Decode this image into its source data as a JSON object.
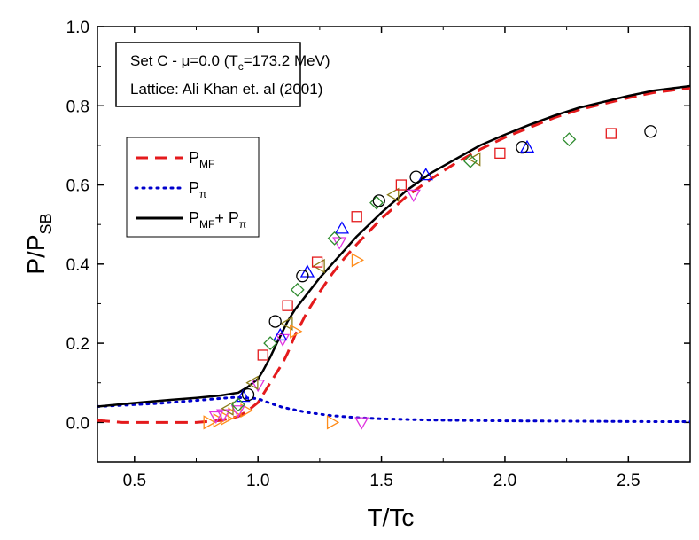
{
  "chart_data": {
    "type": "line",
    "xlabel": "T/Tc",
    "ylabel_main": "P/P",
    "ylabel_sub": "SB",
    "xlim": [
      0.35,
      2.75
    ],
    "ylim": [
      -0.1,
      1.0
    ],
    "x_ticks": [
      0.5,
      1.0,
      1.5,
      2.0,
      2.5
    ],
    "x_tick_labels": [
      "0.5",
      "1.0",
      "1.5",
      "2.0",
      "2.5"
    ],
    "y_ticks": [
      0.0,
      0.2,
      0.4,
      0.6,
      0.8,
      1.0
    ],
    "y_tick_labels": [
      "0.0",
      "0.2",
      "0.4",
      "0.6",
      "0.8",
      "1.0"
    ],
    "annotation": {
      "line1_pre": "Set C - ",
      "line1_mu": "μ=0.0 (T",
      "line1_sub": "c",
      "line1_post": "=173.2 MeV)",
      "line2": "Lattice: Ali Khan et. al (2001)"
    },
    "legend": {
      "placement": "upper-left",
      "entries": [
        {
          "main": "P",
          "sub": "MF",
          "tail_main": "",
          "tail_sub": ""
        },
        {
          "main": "P",
          "sub": "π",
          "tail_main": "",
          "tail_sub": ""
        },
        {
          "main": "P",
          "sub": "MF",
          "tail_main": "+ P",
          "tail_sub": "π"
        }
      ]
    },
    "series": [
      {
        "name": "PMF",
        "style": "dashed",
        "color": "#e41a1c",
        "x": [
          0.35,
          0.45,
          0.55,
          0.65,
          0.75,
          0.85,
          0.92,
          0.96,
          1.0,
          1.02,
          1.05,
          1.08,
          1.1,
          1.12,
          1.15,
          1.2,
          1.25,
          1.3,
          1.35,
          1.4,
          1.5,
          1.6,
          1.7,
          1.8,
          1.9,
          2.0,
          2.1,
          2.2,
          2.3,
          2.4,
          2.5,
          2.6,
          2.75
        ],
        "y": [
          0.005,
          0.0,
          0.0,
          0.0,
          0.0,
          0.005,
          0.015,
          0.03,
          0.05,
          0.07,
          0.1,
          0.13,
          0.15,
          0.175,
          0.22,
          0.28,
          0.33,
          0.375,
          0.415,
          0.45,
          0.515,
          0.57,
          0.615,
          0.655,
          0.69,
          0.72,
          0.745,
          0.77,
          0.79,
          0.805,
          0.82,
          0.833,
          0.845
        ]
      },
      {
        "name": "Pπ",
        "style": "dotted",
        "color": "#0000cc",
        "x": [
          0.35,
          0.5,
          0.6,
          0.7,
          0.8,
          0.9,
          0.95,
          1.0,
          1.05,
          1.1,
          1.2,
          1.3,
          1.4,
          1.5,
          1.7,
          2.0,
          2.3,
          2.6,
          2.75
        ],
        "y": [
          0.04,
          0.045,
          0.048,
          0.053,
          0.058,
          0.063,
          0.062,
          0.06,
          0.048,
          0.038,
          0.025,
          0.017,
          0.012,
          0.009,
          0.006,
          0.004,
          0.003,
          0.002,
          0.002
        ]
      },
      {
        "name": "PMF + Pπ",
        "style": "solid",
        "color": "#000000",
        "x": [
          0.35,
          0.45,
          0.55,
          0.65,
          0.75,
          0.85,
          0.92,
          0.96,
          1.0,
          1.02,
          1.05,
          1.08,
          1.1,
          1.12,
          1.15,
          1.2,
          1.25,
          1.3,
          1.35,
          1.4,
          1.5,
          1.6,
          1.7,
          1.8,
          1.9,
          2.0,
          2.1,
          2.2,
          2.3,
          2.4,
          2.5,
          2.6,
          2.75
        ],
        "y": [
          0.04,
          0.046,
          0.052,
          0.057,
          0.062,
          0.068,
          0.075,
          0.09,
          0.11,
          0.13,
          0.165,
          0.205,
          0.23,
          0.255,
          0.285,
          0.325,
          0.365,
          0.4,
          0.435,
          0.47,
          0.53,
          0.585,
          0.63,
          0.665,
          0.7,
          0.727,
          0.752,
          0.775,
          0.795,
          0.81,
          0.825,
          0.838,
          0.85
        ]
      }
    ],
    "lattice_points": [
      {
        "marker": "triangle-right",
        "color": "#ff8c1a",
        "points": [
          [
            0.8,
            0.0
          ],
          [
            0.84,
            0.005
          ],
          [
            0.87,
            0.01
          ],
          [
            0.9,
            0.02
          ],
          [
            0.95,
            0.03
          ],
          [
            1.3,
            0.0
          ]
        ]
      },
      {
        "marker": "triangle-down",
        "color": "#e033e0",
        "points": [
          [
            0.83,
            0.015
          ],
          [
            0.86,
            0.02
          ],
          [
            0.92,
            0.03
          ],
          [
            1.0,
            0.095
          ],
          [
            1.1,
            0.21
          ],
          [
            1.33,
            0.455
          ],
          [
            1.42,
            0.0
          ],
          [
            1.63,
            0.575
          ]
        ]
      },
      {
        "marker": "triangle-left",
        "color": "#8b7d1a",
        "points": [
          [
            0.88,
            0.035
          ],
          [
            0.98,
            0.1
          ],
          [
            1.12,
            0.25
          ],
          [
            1.25,
            0.395
          ],
          [
            1.55,
            0.575
          ],
          [
            1.88,
            0.665
          ]
        ]
      },
      {
        "marker": "triangle-up",
        "color": "#0000ff",
        "points": [
          [
            0.94,
            0.065
          ],
          [
            1.09,
            0.22
          ],
          [
            1.2,
            0.38
          ],
          [
            1.34,
            0.49
          ],
          [
            1.68,
            0.625
          ],
          [
            2.09,
            0.695
          ]
        ]
      },
      {
        "marker": "diamond",
        "color": "#2e8b2e",
        "points": [
          [
            0.92,
            0.045
          ],
          [
            1.05,
            0.2
          ],
          [
            1.16,
            0.335
          ],
          [
            1.31,
            0.465
          ],
          [
            1.48,
            0.555
          ],
          [
            1.86,
            0.66
          ],
          [
            2.26,
            0.715
          ]
        ]
      },
      {
        "marker": "square",
        "color": "#e41a1c",
        "points": [
          [
            1.02,
            0.17
          ],
          [
            1.12,
            0.295
          ],
          [
            1.24,
            0.405
          ],
          [
            1.4,
            0.52
          ],
          [
            1.58,
            0.6
          ],
          [
            1.98,
            0.68
          ],
          [
            2.43,
            0.73
          ]
        ]
      },
      {
        "marker": "triangle-right",
        "color": "#ff8c1a",
        "points": [
          [
            1.15,
            0.23
          ],
          [
            1.4,
            0.41
          ]
        ]
      },
      {
        "marker": "circle",
        "color": "#000000",
        "points": [
          [
            0.96,
            0.07
          ],
          [
            1.07,
            0.255
          ],
          [
            1.18,
            0.37
          ],
          [
            1.49,
            0.56
          ],
          [
            1.64,
            0.62
          ],
          [
            2.07,
            0.695
          ],
          [
            2.59,
            0.735
          ]
        ]
      }
    ]
  }
}
